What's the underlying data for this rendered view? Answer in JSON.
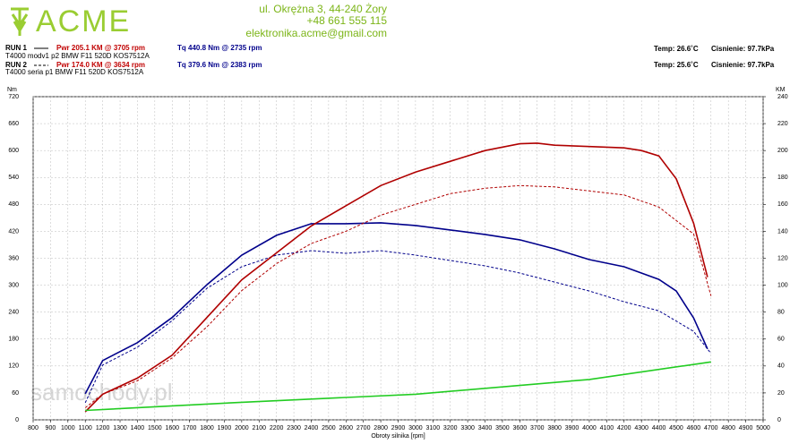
{
  "header": {
    "logo": "ACME",
    "address": [
      "ul. Okrężna 3, 44-240 Żory",
      "+48 661 555 115",
      "elektronika.acme@gmail.com"
    ],
    "runs": [
      {
        "label": "RUN 1",
        "pwr": "Pwr 205.1 KM @ 3705 rpm",
        "tq": "Tq 440.8 Nm @ 2735 rpm",
        "desc": "T4000 modv1 p2 BMW F11 520D KOS7512A",
        "temp": "Temp: 26.6˚C",
        "pressure": "Cisnienie: 97.7kPa",
        "color": "#c00000"
      },
      {
        "label": "RUN 2",
        "pwr": "Pwr 174.0 KM @ 3634 rpm",
        "tq": "Tq 379.6 Nm @ 2383 rpm",
        "desc": "T4000 seria p1 BMW F11 520D KOS7512A",
        "temp": "Temp: 25.6˚C",
        "pressure": "Cisnienie: 97.7kPa",
        "color": "#c00000"
      }
    ],
    "watermark": "samochody.pl"
  },
  "chart_data": {
    "type": "line",
    "y_label": "Nm",
    "y2_label": "KM",
    "x_label": "Obroty silnika [rpm]",
    "grid": true,
    "xlim": [
      800,
      5000
    ],
    "ylim": [
      0,
      720
    ],
    "y2lim": [
      0,
      240
    ],
    "xticks": [
      800,
      900,
      1000,
      1100,
      1200,
      1300,
      1400,
      1500,
      1600,
      1700,
      1800,
      1900,
      2000,
      2100,
      2200,
      2300,
      2400,
      2500,
      2600,
      2700,
      2800,
      2900,
      3000,
      3100,
      3200,
      3300,
      3400,
      3500,
      3600,
      3700,
      3800,
      3900,
      4000,
      4100,
      4200,
      4300,
      4400,
      4500,
      4600,
      4700,
      4800,
      4900,
      5000
    ],
    "yticks": [
      0,
      60,
      120,
      180,
      240,
      300,
      360,
      420,
      480,
      540,
      600,
      660,
      720
    ],
    "y2ticks": [
      0,
      20,
      40,
      60,
      80,
      100,
      120,
      140,
      160,
      180,
      200,
      220,
      240
    ],
    "series": [
      {
        "color": "#00008b",
        "axis": "y",
        "dashed": false,
        "x": [
          1100,
          1200,
          1400,
          1600,
          1800,
          2000,
          2200,
          2400,
          2600,
          2800,
          3000,
          3200,
          3400,
          3600,
          3800,
          4000,
          4200,
          4400,
          4500,
          4600,
          4680
        ],
        "values": [
          58,
          132,
          172,
          228,
          301,
          367,
          411,
          437,
          437,
          439,
          433,
          423,
          413,
          401,
          381,
          357,
          341,
          313,
          287,
          227,
          158
        ]
      },
      {
        "color": "#00008b",
        "axis": "y",
        "dashed": true,
        "x": [
          1100,
          1200,
          1400,
          1600,
          1800,
          2000,
          2200,
          2400,
          2600,
          2800,
          3000,
          3200,
          3400,
          3600,
          3800,
          4000,
          4200,
          4400,
          4600,
          4700
        ],
        "values": [
          38,
          122,
          162,
          221,
          293,
          341,
          367,
          377,
          371,
          377,
          367,
          355,
          343,
          327,
          307,
          287,
          263,
          243,
          197,
          148
        ]
      },
      {
        "color": "#b00000",
        "axis": "y2",
        "dashed": false,
        "x": [
          1100,
          1200,
          1400,
          1600,
          1800,
          2000,
          2200,
          2400,
          2600,
          2800,
          3000,
          3200,
          3400,
          3600,
          3700,
          3800,
          4000,
          4200,
          4300,
          4400,
          4500,
          4600,
          4680
        ],
        "values": [
          6,
          19,
          31,
          48,
          76,
          104,
          124,
          144,
          159,
          174,
          184,
          192,
          200,
          205,
          205.5,
          204,
          203,
          202,
          200,
          196,
          179,
          146,
          106
        ]
      },
      {
        "color": "#b00000",
        "axis": "y2",
        "dashed": true,
        "x": [
          1100,
          1200,
          1400,
          1600,
          1800,
          2000,
          2200,
          2400,
          2600,
          2800,
          3000,
          3200,
          3400,
          3600,
          3800,
          4000,
          4200,
          4400,
          4600,
          4700
        ],
        "values": [
          9,
          19,
          29,
          46,
          69,
          96,
          116,
          131,
          140,
          152,
          160,
          168,
          172,
          174,
          173,
          170,
          167,
          158,
          138,
          92
        ]
      },
      {
        "color": "#22cc22",
        "axis": "y2",
        "dashed": false,
        "x": [
          1100,
          2000,
          3000,
          4000,
          4700
        ],
        "values": [
          7,
          13,
          19,
          30,
          43
        ]
      }
    ]
  }
}
